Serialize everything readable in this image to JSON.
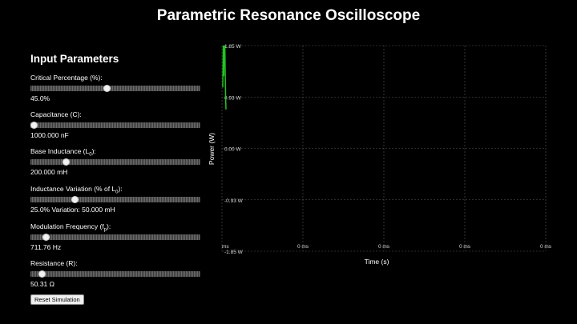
{
  "title": "Parametric Resonance Oscilloscope",
  "panel": {
    "heading": "Input Parameters",
    "params": [
      {
        "label": "Critical Percentage (%):",
        "value": "45.0%",
        "fraction": 0.45
      },
      {
        "label": "Capacitance (C):",
        "value": "1000.000 nF",
        "fraction": 0.02
      },
      {
        "label_main": "Base Inductance (L",
        "label_sub": "0",
        "label_end": "):",
        "value": "200.000 mH",
        "fraction": 0.21
      },
      {
        "label_main": "Inductance Variation (% of L",
        "label_sub": "0",
        "label_end": "):",
        "value": "25.0% Variation: 50.000 mH",
        "fraction": 0.26
      },
      {
        "label_main": "Modulation Frequency (f",
        "label_sub": "p",
        "label_end": "):",
        "value": "711.76 Hz",
        "fraction": 0.09
      },
      {
        "label": "Resistance (R):",
        "value": "50.31 Ω",
        "fraction": 0.07
      }
    ],
    "reset_label": "Reset Simulation"
  },
  "chart_data": {
    "type": "line",
    "xlabel": "Time (s)",
    "ylabel": "Power (W)",
    "x_tick_labels": [
      "ms",
      "0 ms",
      "0 ms",
      "0 ms",
      "0 ms"
    ],
    "y_tick_labels": [
      "1.85 W",
      "0.93 W",
      "0.00 W",
      "-0.93 W",
      "-1.85 W"
    ],
    "ylim": [
      -1.85,
      1.85
    ],
    "grid": true,
    "series": [
      {
        "color": "#22c322",
        "x": [
          0.0,
          0.15,
          0.3,
          0.45,
          0.55,
          0.65,
          0.8,
          0.9,
          1.0
        ],
        "y": [
          1.1,
          1.85,
          1.3,
          1.85,
          1.6,
          1.85,
          1.2,
          0.9,
          0.7
        ]
      }
    ]
  }
}
